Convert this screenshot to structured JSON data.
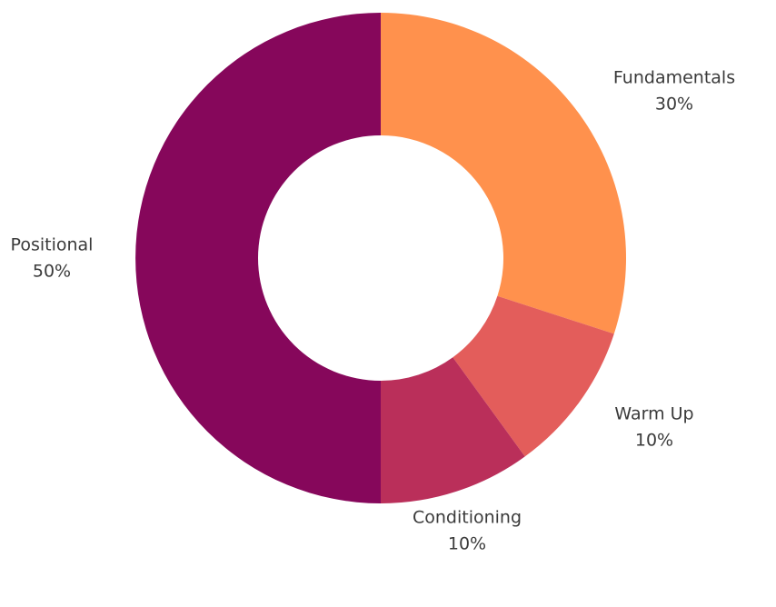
{
  "chart_data": {
    "type": "pie",
    "variant": "donut",
    "start_angle_deg": 0,
    "direction": "clockwise",
    "slices": [
      {
        "label": "Fundamentals",
        "value": 30,
        "display": "30%",
        "color": "#FF914D"
      },
      {
        "label": "Warm Up",
        "value": 10,
        "display": "10%",
        "color": "#E35D5B"
      },
      {
        "label": "Conditioning",
        "value": 10,
        "display": "10%",
        "color": "#BA2F5A"
      },
      {
        "label": "Positional",
        "value": 50,
        "display": "50%",
        "color": "#86075B"
      }
    ]
  }
}
